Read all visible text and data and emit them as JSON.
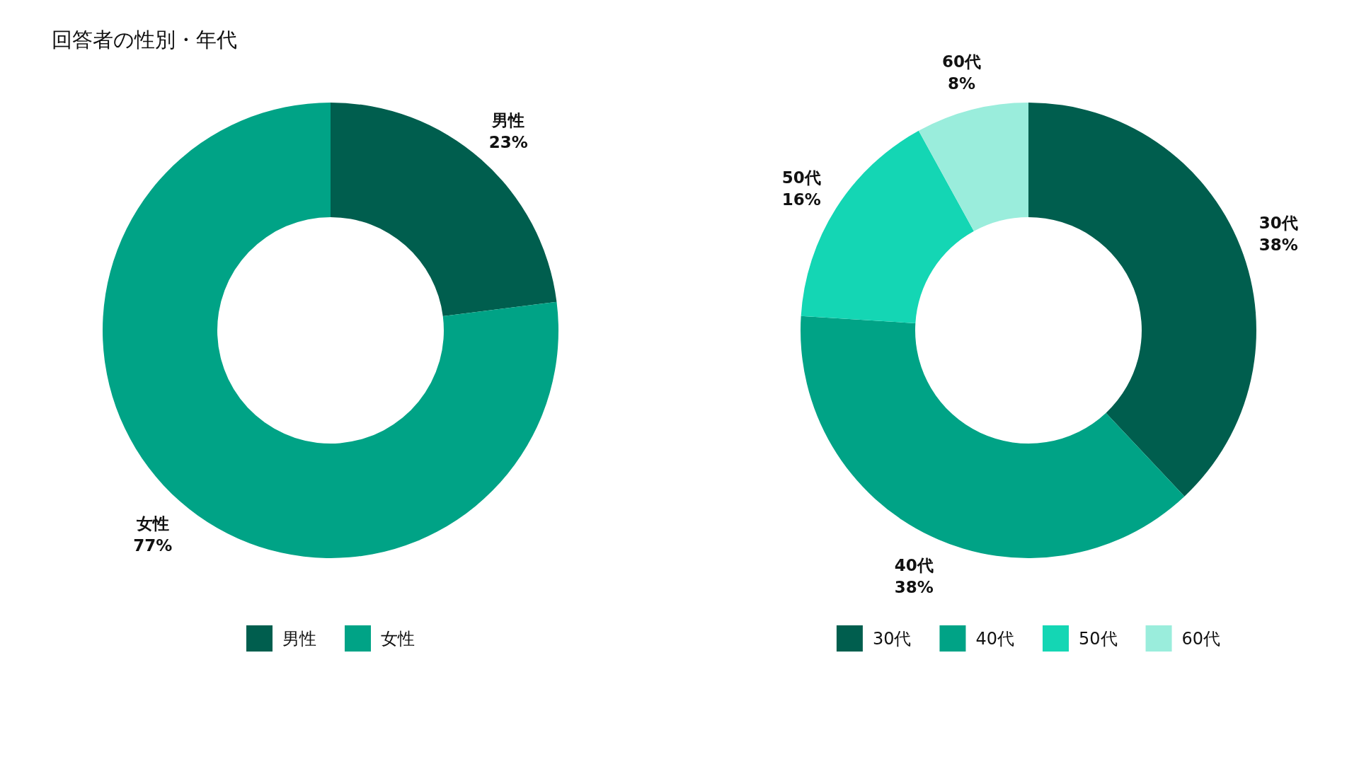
{
  "chart_data": [
    {
      "type": "donut",
      "title": "回答者の性別・年代",
      "categories": [
        "男性",
        "女性"
      ],
      "values": [
        23,
        77
      ],
      "colors": [
        "#005e4e",
        "#00a386"
      ],
      "value_labels": [
        "23%",
        "77%"
      ],
      "legend": "bottom"
    },
    {
      "type": "donut",
      "categories": [
        "30代",
        "40代",
        "50代",
        "60代"
      ],
      "values": [
        38,
        38,
        16,
        8
      ],
      "colors": [
        "#005e4e",
        "#00a386",
        "#14d6b4",
        "#9aeddc"
      ],
      "value_labels": [
        "38%",
        "38%",
        "16%",
        "8%"
      ],
      "legend": "bottom"
    }
  ]
}
